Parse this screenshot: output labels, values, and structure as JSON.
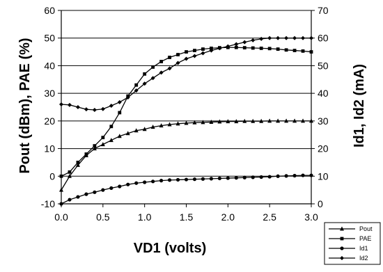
{
  "chart_data": {
    "type": "line",
    "title": "",
    "xlabel": "VD1 (volts)",
    "ylabel_left": "Pout (dBm), PAE (%)",
    "ylabel_right": "Id1, Id2 (mA)",
    "xlim": [
      0,
      3
    ],
    "ylim_left": [
      -10,
      60
    ],
    "ylim_right": [
      0,
      70
    ],
    "x_ticks": [
      "0.0",
      "0.5",
      "1.0",
      "1.5",
      "2.0",
      "2.5",
      "3.0"
    ],
    "y_ticks_left": [
      "-10",
      "0",
      "10",
      "20",
      "30",
      "40",
      "50",
      "60"
    ],
    "y_ticks_right": [
      "0",
      "10",
      "20",
      "30",
      "40",
      "50",
      "60",
      "70"
    ],
    "grid": "horizontal",
    "legend_position": "bottom-right",
    "series": [
      {
        "name": "Pout",
        "axis": "left",
        "marker": "triangle",
        "x": [
          0.0,
          0.1,
          0.2,
          0.3,
          0.4,
          0.5,
          0.6,
          0.7,
          0.8,
          0.9,
          1.0,
          1.1,
          1.2,
          1.3,
          1.4,
          1.5,
          1.6,
          1.7,
          1.8,
          1.9,
          2.0,
          2.1,
          2.2,
          2.3,
          2.4,
          2.5,
          2.6,
          2.7,
          2.8,
          2.9,
          3.0
        ],
        "values": [
          -5,
          0,
          4,
          7.5,
          10,
          11.5,
          13,
          14.5,
          15.5,
          16.5,
          17,
          17.8,
          18.3,
          18.7,
          19,
          19.2,
          19.4,
          19.5,
          19.6,
          19.7,
          19.8,
          19.8,
          19.9,
          19.9,
          19.9,
          20,
          20,
          20,
          20,
          20,
          20
        ]
      },
      {
        "name": "PAE",
        "axis": "left",
        "marker": "square",
        "x": [
          0.0,
          0.1,
          0.2,
          0.3,
          0.4,
          0.5,
          0.6,
          0.7,
          0.8,
          0.9,
          1.0,
          1.1,
          1.2,
          1.3,
          1.4,
          1.5,
          1.6,
          1.7,
          1.8,
          1.9,
          2.0,
          2.1,
          2.2,
          2.3,
          2.4,
          2.5,
          2.6,
          2.7,
          2.8,
          2.9,
          3.0
        ],
        "values": [
          0,
          1.5,
          5,
          8,
          11,
          14,
          18,
          23,
          29,
          33,
          37,
          39.5,
          41.5,
          43,
          44,
          45,
          45.5,
          46,
          46.3,
          46.5,
          46.6,
          46.6,
          46.5,
          46.4,
          46.3,
          46.2,
          46,
          45.7,
          45.5,
          45.3,
          45
        ]
      },
      {
        "name": "Id1",
        "axis": "right",
        "marker": "circle",
        "x": [
          0.0,
          0.1,
          0.2,
          0.3,
          0.4,
          0.5,
          0.6,
          0.7,
          0.8,
          0.9,
          1.0,
          1.1,
          1.2,
          1.3,
          1.4,
          1.5,
          1.6,
          1.7,
          1.8,
          1.9,
          2.0,
          2.1,
          2.2,
          2.3,
          2.4,
          2.5,
          2.6,
          2.7,
          2.8,
          2.9,
          3.0
        ],
        "values": [
          0,
          1.5,
          2.5,
          3.5,
          4.2,
          5,
          5.7,
          6.3,
          7,
          7.5,
          7.8,
          8.1,
          8.4,
          8.6,
          8.7,
          8.8,
          8.9,
          9,
          9.1,
          9.2,
          9.3,
          9.4,
          9.5,
          9.6,
          9.7,
          9.8,
          10,
          10.1,
          10.2,
          10.3,
          10.3
        ]
      },
      {
        "name": "Id2",
        "axis": "right",
        "marker": "diamond",
        "x": [
          0.0,
          0.1,
          0.2,
          0.3,
          0.4,
          0.5,
          0.6,
          0.7,
          0.8,
          0.9,
          1.0,
          1.1,
          1.2,
          1.3,
          1.4,
          1.5,
          1.6,
          1.7,
          1.8,
          1.9,
          2.0,
          2.1,
          2.2,
          2.3,
          2.4,
          2.5,
          2.6,
          2.7,
          2.8,
          2.9,
          3.0
        ],
        "values": [
          36,
          35.8,
          35,
          34.2,
          34,
          34.3,
          35.5,
          36.8,
          38.5,
          41,
          43.5,
          45.5,
          47.5,
          49,
          51,
          52.5,
          53.5,
          54.5,
          55.5,
          56.3,
          57,
          57.8,
          58.5,
          59.2,
          59.7,
          60,
          60,
          60,
          60,
          60,
          60
        ]
      }
    ]
  }
}
